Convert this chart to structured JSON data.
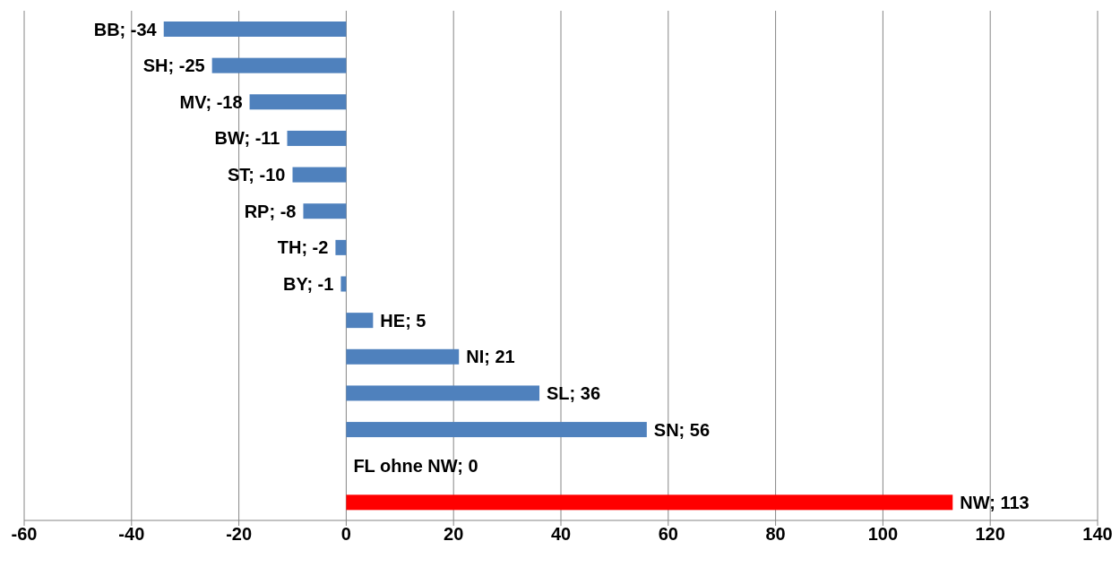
{
  "chart_data": {
    "type": "bar",
    "orientation": "horizontal",
    "categories": [
      null,
      null,
      null,
      null,
      null,
      null,
      null,
      null,
      null,
      null,
      null,
      null,
      null,
      null
    ],
    "values": [
      -34,
      -25,
      -18,
      -11,
      -10,
      -8,
      -2,
      -1,
      5,
      21,
      36,
      56,
      0,
      113
    ],
    "colors": [
      "#4f81bd",
      "#4f81bd",
      "#4f81bd",
      "#4f81bd",
      "#4f81bd",
      "#4f81bd",
      "#4f81bd",
      "#4f81bd",
      "#4f81bd",
      "#4f81bd",
      "#4f81bd",
      "#4f81bd",
      "#4f81bd",
      "#ff0000"
    ],
    "value_labels": [
      "BB; -34",
      "SH; -25",
      "MV; -18",
      "BW; -11",
      "ST; -10",
      "RP; -8",
      "TH; -2",
      "BY; -1",
      "HE; 5",
      "NI; 21",
      "SL; 36",
      "SN; 56",
      "FL ohne NW; 0",
      "NW; 113"
    ],
    "xlim": [
      -60,
      140
    ],
    "xticks": [
      -60,
      -40,
      -20,
      0,
      20,
      40,
      60,
      80,
      100,
      120,
      140
    ],
    "grid": "x",
    "tick_labels": "x"
  }
}
